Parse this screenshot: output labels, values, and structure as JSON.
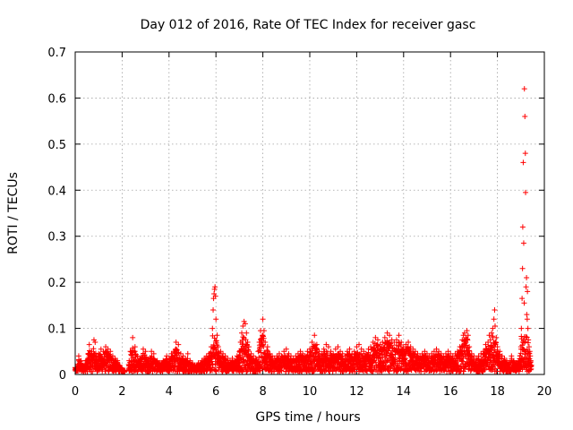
{
  "chart_data": {
    "type": "scatter",
    "title": "Day 012 of 2016, Rate Of TEC Index for receiver gasc",
    "xlabel": "GPS time / hours",
    "ylabel": "ROTI / TECUs",
    "xlim": [
      0,
      20
    ],
    "ylim": [
      0,
      0.7
    ],
    "xticks": [
      "0",
      "2",
      "4",
      "6",
      "8",
      "10",
      "12",
      "14",
      "16",
      "18",
      "20"
    ],
    "yticks": [
      "0",
      "0.1",
      "0.2",
      "0.3",
      "0.4",
      "0.5",
      "0.6",
      "0.7"
    ],
    "grid": true,
    "marker": "+",
    "color": "#ff0000",
    "series": [
      {
        "name": "ROTI",
        "data_source": "visually estimated from plot",
        "points": [
          [
            0.0,
            0.015
          ],
          [
            0.1,
            0.02
          ],
          [
            0.15,
            0.04
          ],
          [
            0.25,
            0.03
          ],
          [
            0.35,
            0.02
          ],
          [
            0.45,
            0.03
          ],
          [
            0.55,
            0.045
          ],
          [
            0.6,
            0.065
          ],
          [
            0.7,
            0.05
          ],
          [
            0.8,
            0.075
          ],
          [
            0.85,
            0.07
          ],
          [
            0.9,
            0.04
          ],
          [
            1.0,
            0.045
          ],
          [
            1.1,
            0.055
          ],
          [
            1.2,
            0.05
          ],
          [
            1.3,
            0.06
          ],
          [
            1.4,
            0.055
          ],
          [
            1.5,
            0.05
          ],
          [
            1.6,
            0.04
          ],
          [
            1.7,
            0.035
          ],
          [
            1.8,
            0.03
          ],
          [
            1.9,
            0.02
          ],
          [
            2.0,
            0.01
          ],
          [
            2.1,
            0.005
          ],
          [
            2.3,
            0.03
          ],
          [
            2.35,
            0.05
          ],
          [
            2.45,
            0.08
          ],
          [
            2.55,
            0.06
          ],
          [
            2.65,
            0.04
          ],
          [
            2.75,
            0.035
          ],
          [
            2.9,
            0.055
          ],
          [
            3.0,
            0.05
          ],
          [
            3.1,
            0.03
          ],
          [
            3.25,
            0.05
          ],
          [
            3.35,
            0.045
          ],
          [
            3.5,
            0.03
          ],
          [
            3.6,
            0.025
          ],
          [
            3.75,
            0.03
          ],
          [
            3.9,
            0.04
          ],
          [
            4.0,
            0.035
          ],
          [
            4.1,
            0.045
          ],
          [
            4.2,
            0.05
          ],
          [
            4.3,
            0.07
          ],
          [
            4.4,
            0.065
          ],
          [
            4.5,
            0.045
          ],
          [
            4.6,
            0.04
          ],
          [
            4.7,
            0.035
          ],
          [
            4.8,
            0.045
          ],
          [
            4.9,
            0.03
          ],
          [
            5.0,
            0.025
          ],
          [
            5.1,
            0.02
          ],
          [
            5.25,
            0.025
          ],
          [
            5.4,
            0.03
          ],
          [
            5.5,
            0.035
          ],
          [
            5.6,
            0.04
          ],
          [
            5.7,
            0.045
          ],
          [
            5.8,
            0.06
          ],
          [
            5.85,
            0.1
          ],
          [
            5.88,
            0.14
          ],
          [
            5.9,
            0.165
          ],
          [
            5.92,
            0.175
          ],
          [
            5.94,
            0.185
          ],
          [
            5.96,
            0.19
          ],
          [
            5.98,
            0.17
          ],
          [
            6.0,
            0.12
          ],
          [
            6.05,
            0.085
          ],
          [
            6.1,
            0.06
          ],
          [
            6.2,
            0.05
          ],
          [
            6.3,
            0.045
          ],
          [
            6.4,
            0.04
          ],
          [
            6.5,
            0.035
          ],
          [
            6.6,
            0.03
          ],
          [
            6.7,
            0.035
          ],
          [
            6.8,
            0.03
          ],
          [
            6.9,
            0.04
          ],
          [
            7.0,
            0.05
          ],
          [
            7.05,
            0.07
          ],
          [
            7.1,
            0.09
          ],
          [
            7.15,
            0.105
          ],
          [
            7.2,
            0.115
          ],
          [
            7.25,
            0.11
          ],
          [
            7.3,
            0.09
          ],
          [
            7.35,
            0.07
          ],
          [
            7.4,
            0.06
          ],
          [
            7.5,
            0.045
          ],
          [
            7.6,
            0.04
          ],
          [
            7.7,
            0.035
          ],
          [
            7.8,
            0.05
          ],
          [
            7.85,
            0.07
          ],
          [
            7.9,
            0.095
          ],
          [
            8.0,
            0.12
          ],
          [
            8.05,
            0.095
          ],
          [
            8.1,
            0.07
          ],
          [
            8.2,
            0.06
          ],
          [
            8.3,
            0.045
          ],
          [
            8.4,
            0.04
          ],
          [
            8.5,
            0.035
          ],
          [
            8.6,
            0.04
          ],
          [
            8.7,
            0.045
          ],
          [
            8.8,
            0.04
          ],
          [
            8.9,
            0.05
          ],
          [
            9.0,
            0.055
          ],
          [
            9.1,
            0.045
          ],
          [
            9.2,
            0.04
          ],
          [
            9.3,
            0.035
          ],
          [
            9.4,
            0.04
          ],
          [
            9.5,
            0.045
          ],
          [
            9.6,
            0.05
          ],
          [
            9.7,
            0.045
          ],
          [
            9.8,
            0.04
          ],
          [
            9.9,
            0.05
          ],
          [
            10.0,
            0.055
          ],
          [
            10.1,
            0.07
          ],
          [
            10.2,
            0.085
          ],
          [
            10.3,
            0.065
          ],
          [
            10.4,
            0.05
          ],
          [
            10.5,
            0.045
          ],
          [
            10.6,
            0.055
          ],
          [
            10.7,
            0.065
          ],
          [
            10.8,
            0.06
          ],
          [
            10.9,
            0.05
          ],
          [
            11.0,
            0.045
          ],
          [
            11.1,
            0.055
          ],
          [
            11.2,
            0.06
          ],
          [
            11.3,
            0.05
          ],
          [
            11.4,
            0.045
          ],
          [
            11.5,
            0.04
          ],
          [
            11.6,
            0.05
          ],
          [
            11.7,
            0.055
          ],
          [
            11.8,
            0.045
          ],
          [
            11.9,
            0.05
          ],
          [
            12.0,
            0.06
          ],
          [
            12.1,
            0.065
          ],
          [
            12.2,
            0.055
          ],
          [
            12.3,
            0.05
          ],
          [
            12.4,
            0.045
          ],
          [
            12.5,
            0.055
          ],
          [
            12.6,
            0.06
          ],
          [
            12.7,
            0.07
          ],
          [
            12.8,
            0.08
          ],
          [
            12.9,
            0.075
          ],
          [
            13.0,
            0.065
          ],
          [
            13.1,
            0.07
          ],
          [
            13.2,
            0.08
          ],
          [
            13.3,
            0.09
          ],
          [
            13.4,
            0.085
          ],
          [
            13.5,
            0.075
          ],
          [
            13.6,
            0.07
          ],
          [
            13.7,
            0.075
          ],
          [
            13.8,
            0.085
          ],
          [
            13.9,
            0.07
          ],
          [
            14.0,
            0.06
          ],
          [
            14.1,
            0.065
          ],
          [
            14.2,
            0.07
          ],
          [
            14.3,
            0.06
          ],
          [
            14.4,
            0.055
          ],
          [
            14.5,
            0.05
          ],
          [
            14.6,
            0.045
          ],
          [
            14.7,
            0.04
          ],
          [
            14.8,
            0.045
          ],
          [
            14.9,
            0.05
          ],
          [
            15.0,
            0.045
          ],
          [
            15.1,
            0.04
          ],
          [
            15.2,
            0.045
          ],
          [
            15.3,
            0.05
          ],
          [
            15.4,
            0.055
          ],
          [
            15.5,
            0.05
          ],
          [
            15.6,
            0.045
          ],
          [
            15.7,
            0.04
          ],
          [
            15.8,
            0.045
          ],
          [
            15.9,
            0.05
          ],
          [
            16.0,
            0.045
          ],
          [
            16.1,
            0.04
          ],
          [
            16.2,
            0.045
          ],
          [
            16.3,
            0.05
          ],
          [
            16.4,
            0.06
          ],
          [
            16.5,
            0.075
          ],
          [
            16.55,
            0.085
          ],
          [
            16.6,
            0.09
          ],
          [
            16.65,
            0.08
          ],
          [
            16.7,
            0.095
          ],
          [
            16.75,
            0.085
          ],
          [
            16.8,
            0.06
          ],
          [
            16.9,
            0.045
          ],
          [
            17.0,
            0.04
          ],
          [
            17.1,
            0.035
          ],
          [
            17.2,
            0.04
          ],
          [
            17.3,
            0.045
          ],
          [
            17.4,
            0.05
          ],
          [
            17.5,
            0.065
          ],
          [
            17.6,
            0.07
          ],
          [
            17.65,
            0.085
          ],
          [
            17.7,
            0.075
          ],
          [
            17.75,
            0.09
          ],
          [
            17.8,
            0.1
          ],
          [
            17.85,
            0.12
          ],
          [
            17.88,
            0.14
          ],
          [
            17.9,
            0.105
          ],
          [
            17.95,
            0.08
          ],
          [
            18.0,
            0.06
          ],
          [
            18.1,
            0.05
          ],
          [
            18.2,
            0.04
          ],
          [
            18.3,
            0.035
          ],
          [
            18.4,
            0.03
          ],
          [
            18.5,
            0.025
          ],
          [
            18.6,
            0.04
          ],
          [
            18.7,
            0.03
          ],
          [
            18.8,
            0.025
          ],
          [
            18.9,
            0.03
          ],
          [
            19.0,
            0.06
          ],
          [
            19.02,
            0.1
          ],
          [
            19.05,
            0.165
          ],
          [
            19.07,
            0.23
          ],
          [
            19.08,
            0.32
          ],
          [
            19.1,
            0.46
          ],
          [
            19.12,
            0.285
          ],
          [
            19.14,
            0.155
          ],
          [
            19.15,
            0.62
          ],
          [
            19.17,
            0.56
          ],
          [
            19.19,
            0.48
          ],
          [
            19.2,
            0.395
          ],
          [
            19.22,
            0.19
          ],
          [
            19.24,
            0.21
          ],
          [
            19.25,
            0.13
          ],
          [
            19.27,
            0.12
          ],
          [
            19.28,
            0.18
          ],
          [
            19.3,
            0.1
          ],
          [
            19.32,
            0.075
          ],
          [
            19.35,
            0.06
          ],
          [
            19.38,
            0.05
          ],
          [
            19.4,
            0.04
          ],
          [
            19.42,
            0.03
          ],
          [
            19.45,
            0.02
          ]
        ]
      }
    ]
  }
}
